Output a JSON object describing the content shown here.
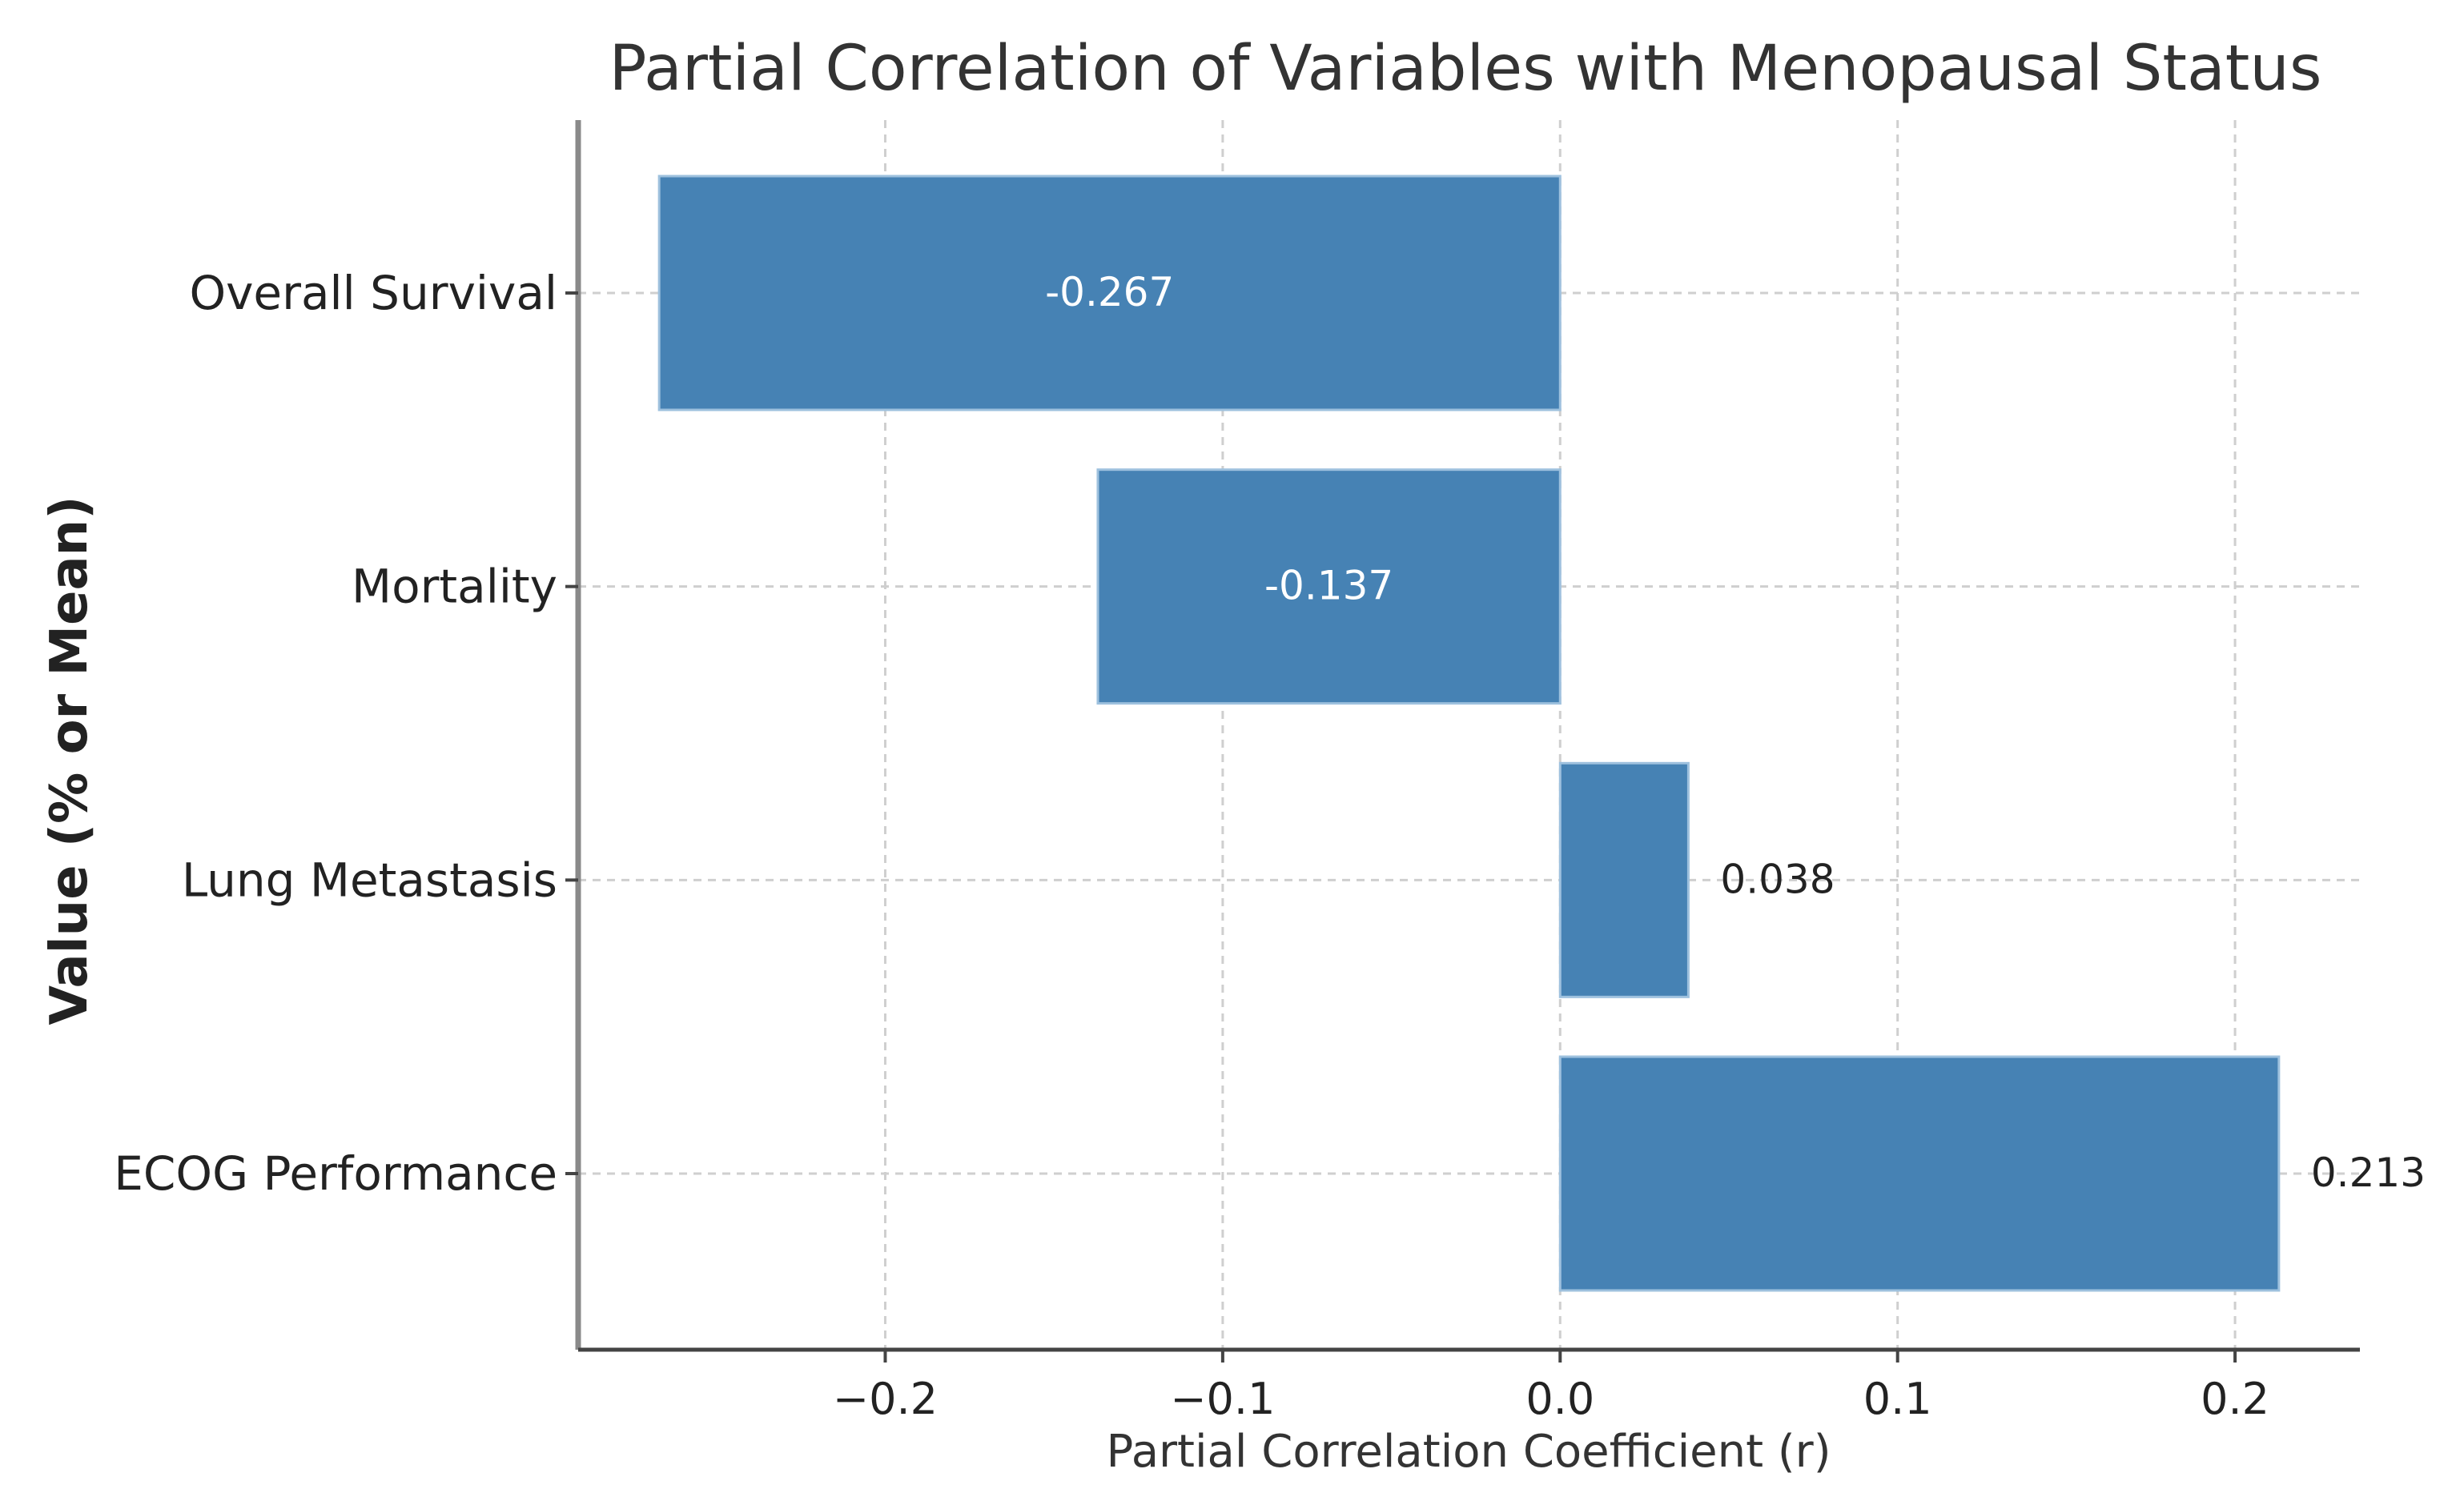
{
  "chart_data": {
    "type": "bar",
    "orientation": "horizontal",
    "title": "Partial Correlation of Variables with Menopausal Status",
    "xlabel": "Partial Correlation Coefficient (r)",
    "ylabel": "Value (% or Mean)",
    "categories": [
      "Overall Survival",
      "Mortality",
      "Lung Metastasis",
      "ECOG Performance"
    ],
    "values": [
      -0.267,
      -0.137,
      0.038,
      0.213
    ],
    "data_labels": [
      "-0.267",
      "-0.137",
      "0.038",
      "0.213"
    ],
    "xlim": [
      -0.291,
      0.237
    ],
    "xticks": [
      -0.2,
      -0.1,
      0.0,
      0.1,
      0.2
    ],
    "xtick_labels": [
      "−0.2",
      "−0.1",
      "0.0",
      "0.1",
      "0.2"
    ],
    "grid": true,
    "bar_color": "#4682b4",
    "label_inside_color": "#ffffff",
    "label_outside_color": "#222222"
  }
}
